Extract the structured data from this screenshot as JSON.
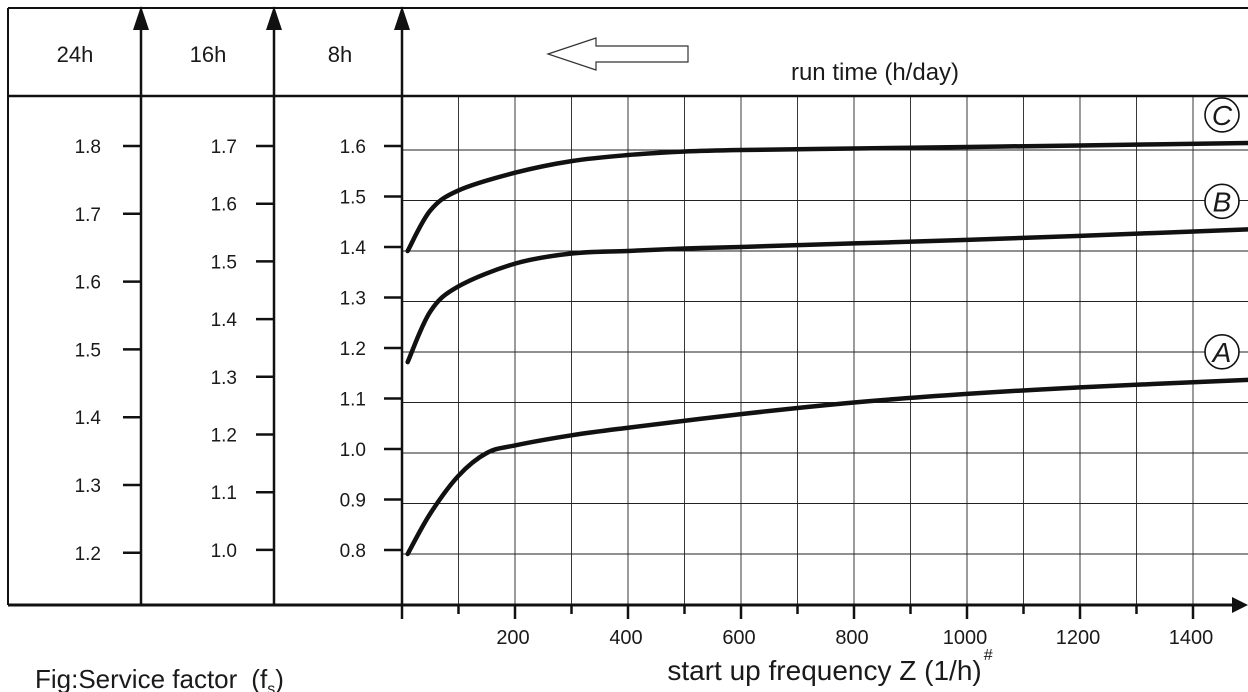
{
  "chart_data": {
    "type": "line",
    "caption": "Fig:Service factor",
    "caption_symbol": "(f",
    "caption_sub": "s",
    "caption_close": ")",
    "top_label": "run time (h/day)",
    "xlabel": "start up frequency Z (1/h)",
    "xlabel_mark": "#",
    "xlim": [
      0,
      1500
    ],
    "xticks": [
      200,
      400,
      600,
      800,
      1000,
      1200,
      1400
    ],
    "columns": [
      {
        "name": "24h",
        "ticks": [
          "1.8",
          "1.7",
          "1.6",
          "1.5",
          "1.4",
          "1.3",
          "1.2"
        ]
      },
      {
        "name": "16h",
        "ticks": [
          "1.7",
          "1.6",
          "1.5",
          "1.4",
          "1.3",
          "1.2",
          "1.1",
          "1.0"
        ]
      },
      {
        "name": "8h",
        "ticks": [
          "1.6",
          "1.5",
          "1.4",
          "1.3",
          "1.2",
          "1.1",
          "1.0",
          "0.9",
          "0.8"
        ]
      }
    ],
    "series": [
      {
        "name": "C",
        "x": [
          10,
          50,
          100,
          200,
          300,
          400,
          500,
          600,
          800,
          1000,
          1200,
          1500
        ],
        "y": [
          1.4,
          1.48,
          1.52,
          1.555,
          1.578,
          1.59,
          1.597,
          1.6,
          1.603,
          1.606,
          1.609,
          1.614
        ]
      },
      {
        "name": "B",
        "x": [
          10,
          50,
          100,
          200,
          300,
          400,
          500,
          600,
          800,
          1000,
          1200,
          1500
        ],
        "y": [
          1.18,
          1.28,
          1.33,
          1.375,
          1.395,
          1.4,
          1.405,
          1.408,
          1.415,
          1.422,
          1.43,
          1.443
        ]
      },
      {
        "name": "A",
        "x": [
          10,
          50,
          100,
          150,
          200,
          300,
          400,
          600,
          800,
          1000,
          1200,
          1500
        ],
        "y": [
          0.8,
          0.88,
          0.955,
          1.0,
          1.015,
          1.035,
          1.05,
          1.077,
          1.1,
          1.117,
          1.13,
          1.145
        ]
      }
    ],
    "grid": true
  }
}
